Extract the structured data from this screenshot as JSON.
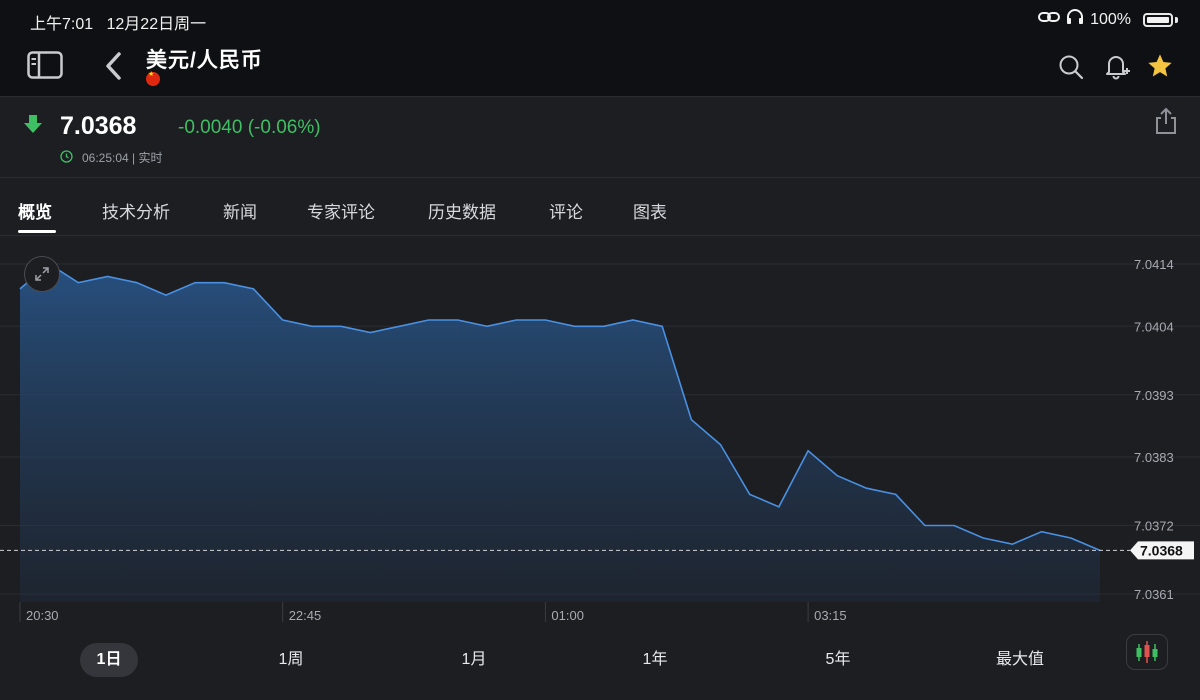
{
  "status": {
    "time": "上午7:01",
    "date": "12月22日周一",
    "battery": "100%"
  },
  "header": {
    "title": "美元/人民币"
  },
  "quote": {
    "price": "7.0368",
    "change": "-0.0040 (-0.06%)",
    "time": "06:25:04",
    "mode": "实时"
  },
  "tabs": [
    "概览",
    "技术分析",
    "新闻",
    "专家评论",
    "历史数据",
    "评论",
    "图表"
  ],
  "ranges": [
    "1日",
    "1周",
    "1月",
    "1年",
    "5年",
    "最大值"
  ],
  "colors": {
    "line": "#4a90e2",
    "positive": "#3fbf63",
    "star": "#f5c542",
    "background": "#1c1e22"
  },
  "chart_data": {
    "type": "area",
    "x_ticks": [
      "20:30",
      "22:45",
      "01:00",
      "03:15"
    ],
    "y_ticks": [
      "7.0414",
      "7.0404",
      "7.0393",
      "7.0383",
      "7.0372",
      "7.0361"
    ],
    "current_label": "7.0368",
    "ylim": [
      7.0361,
      7.0414
    ],
    "values": [
      7.041,
      7.0414,
      7.0411,
      7.0412,
      7.0411,
      7.0409,
      7.0411,
      7.0411,
      7.041,
      7.0405,
      7.0404,
      7.0404,
      7.0403,
      7.0404,
      7.0405,
      7.0405,
      7.0404,
      7.0405,
      7.0405,
      7.0404,
      7.0404,
      7.0405,
      7.0404,
      7.0389,
      7.0385,
      7.0377,
      7.0375,
      7.0384,
      7.038,
      7.0378,
      7.0377,
      7.0372,
      7.0372,
      7.037,
      7.0369,
      7.0371,
      7.037,
      7.0368
    ],
    "grid": true
  }
}
